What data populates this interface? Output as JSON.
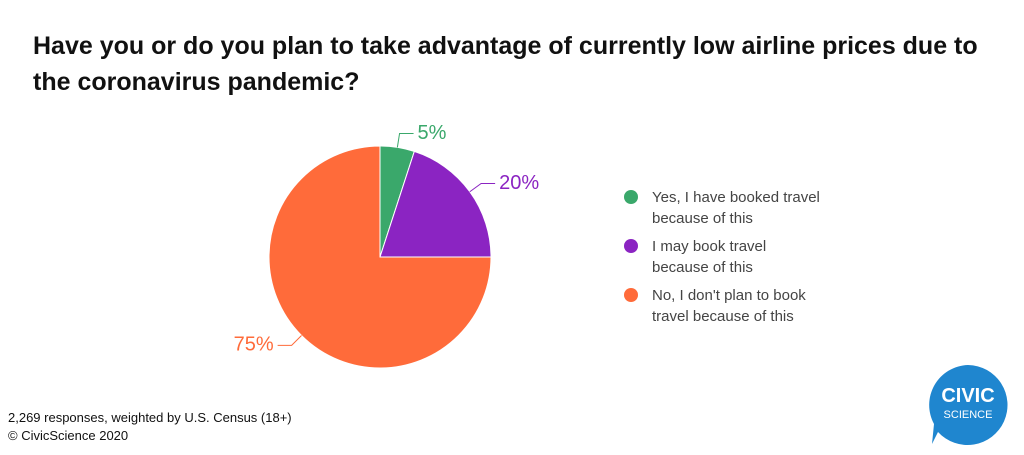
{
  "chart_data": {
    "type": "pie",
    "title": "Have you or do you plan to take advantage of currently low airline prices due to the coronavirus pandemic?",
    "categories": [
      "Yes, I have booked travel because of this",
      "I may book travel because of this",
      "No, I don't plan to book travel because of this"
    ],
    "values": [
      5,
      20,
      75
    ],
    "value_labels": [
      "5%",
      "20%",
      "75%"
    ],
    "colors": [
      "#3aa86b",
      "#8b24c2",
      "#ff6b3a"
    ],
    "footnote": [
      "2,269 responses, weighted by U.S. Census (18+)",
      "© CivicScience 2020"
    ],
    "logo": [
      "CIVIC",
      "SCIENCE"
    ]
  }
}
